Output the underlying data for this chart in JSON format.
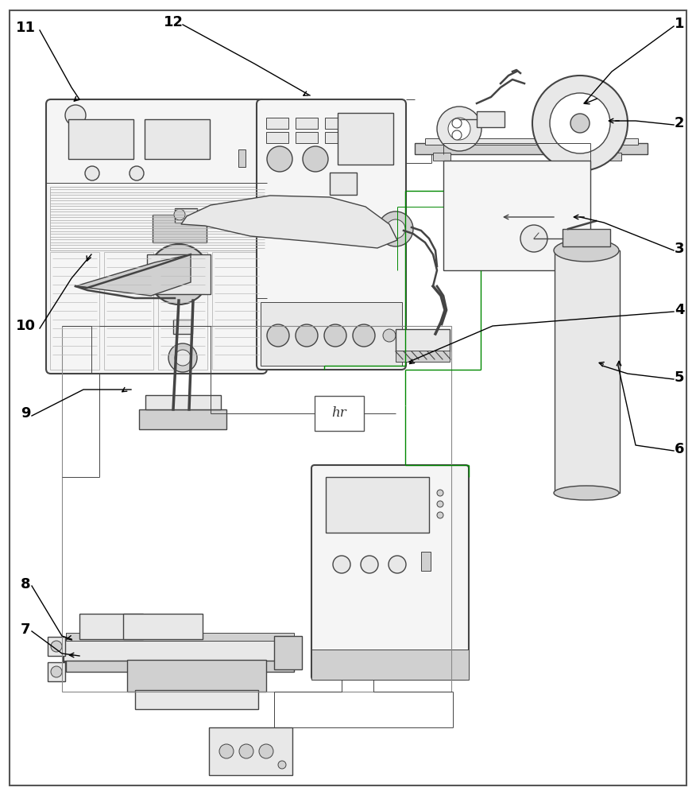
{
  "bg_color": "#ffffff",
  "lc": "#444444",
  "glc": "#008800",
  "lw_thin": 0.7,
  "lw_med": 1.0,
  "lw_thick": 1.5,
  "lw_robot": 1.8,
  "label_fs": 13,
  "fc_light": "#f5f5f5",
  "fc_gray": "#e8e8e8",
  "fc_dark": "#d0d0d0",
  "fc_vent": "#c8c8c8"
}
